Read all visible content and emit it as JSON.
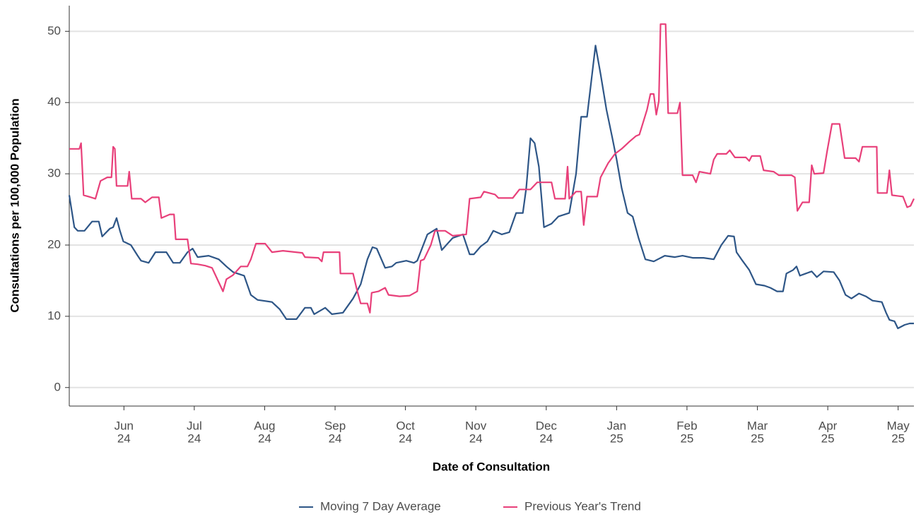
{
  "chart_data": {
    "type": "line",
    "x_label": "Date of Consultation",
    "y_label": "Consultations per 100,000 Population",
    "xlim": [
      2024.352,
      2025.352
    ],
    "ylim": [
      -2.6,
      53.6
    ],
    "xticks": [
      {
        "value": 2024.4167,
        "label": [
          "Jun",
          "24"
        ]
      },
      {
        "value": 2024.5,
        "label": [
          "Jul",
          "24"
        ]
      },
      {
        "value": 2024.5833,
        "label": [
          "Aug",
          "24"
        ]
      },
      {
        "value": 2024.6667,
        "label": [
          "Sep",
          "24"
        ]
      },
      {
        "value": 2024.75,
        "label": [
          "Oct",
          "24"
        ]
      },
      {
        "value": 2024.8333,
        "label": [
          "Nov",
          "24"
        ]
      },
      {
        "value": 2024.9167,
        "label": [
          "Dec",
          "24"
        ]
      },
      {
        "value": 2025.0,
        "label": [
          "Jan",
          "25"
        ]
      },
      {
        "value": 2025.0833,
        "label": [
          "Feb",
          "25"
        ]
      },
      {
        "value": 2025.1667,
        "label": [
          "Mar",
          "25"
        ]
      },
      {
        "value": 2025.25,
        "label": [
          "Apr",
          "25"
        ]
      },
      {
        "value": 2025.3333,
        "label": [
          "May",
          "25"
        ]
      }
    ],
    "yticks": [
      0,
      10,
      20,
      30,
      40,
      50
    ],
    "grid": true,
    "legend": "bottom",
    "series": [
      {
        "name": "Moving 7 Day Average",
        "color": "#2e5687",
        "x": [
          2024.352,
          2024.358,
          2024.362,
          2024.37,
          2024.379,
          2024.387,
          2024.391,
          2024.4,
          2024.404,
          2024.408,
          2024.412,
          2024.416,
          2024.425,
          2024.433,
          2024.437,
          2024.446,
          2024.454,
          2024.467,
          2024.475,
          2024.483,
          2024.492,
          2024.498,
          2024.504,
          2024.517,
          2024.529,
          2024.538,
          2024.546,
          2024.559,
          2024.567,
          2024.575,
          2024.592,
          2024.601,
          2024.609,
          2024.621,
          2024.631,
          2024.638,
          2024.642,
          2024.655,
          2024.663,
          2024.676,
          2024.688,
          2024.697,
          2024.705,
          2024.711,
          2024.716,
          2024.726,
          2024.734,
          2024.739,
          2024.751,
          2024.76,
          2024.764,
          2024.776,
          2024.787,
          2024.793,
          2024.806,
          2024.818,
          2024.826,
          2024.831,
          2024.839,
          2024.847,
          2024.854,
          2024.864,
          2024.873,
          2024.881,
          2024.889,
          2024.893,
          2024.898,
          2024.903,
          2024.908,
          2024.914,
          2024.923,
          2024.931,
          2024.944,
          2024.952,
          2024.958,
          2024.965,
          2024.971,
          2024.975,
          2024.981,
          2024.988,
          2024.995,
          2025.0,
          2025.006,
          2025.013,
          2025.019,
          2025.026,
          2025.034,
          2025.044,
          2025.057,
          2025.069,
          2025.078,
          2025.09,
          2025.103,
          2025.115,
          2025.124,
          2025.132,
          2025.139,
          2025.142,
          2025.149,
          2025.157,
          2025.165,
          2025.175,
          2025.182,
          2025.19,
          2025.197,
          2025.201,
          2025.209,
          2025.213,
          2025.217,
          2025.224,
          2025.231,
          2025.237,
          2025.245,
          2025.257,
          2025.264,
          2025.271,
          2025.278,
          2025.287,
          2025.295,
          2025.303,
          2025.314,
          2025.319,
          2025.323,
          2025.329,
          2025.333,
          2025.341,
          2025.347,
          2025.352
        ],
        "values": [
          27,
          22.5,
          22,
          22,
          23.3,
          23.3,
          21.2,
          22.3,
          22.5,
          23.8,
          22,
          20.5,
          20,
          18.5,
          17.8,
          17.5,
          19,
          19,
          17.5,
          17.5,
          19,
          19.5,
          18.3,
          18.5,
          18,
          17,
          16.2,
          15.7,
          13,
          12.3,
          12,
          11,
          9.6,
          9.6,
          11.2,
          11.2,
          10.3,
          11.2,
          10.3,
          10.5,
          12.5,
          14.5,
          18,
          19.7,
          19.5,
          16.8,
          17,
          17.5,
          17.8,
          17.5,
          17.8,
          21.5,
          22.3,
          19.3,
          21,
          21.5,
          18.7,
          18.7,
          19.8,
          20.5,
          22,
          21.5,
          21.8,
          24.5,
          24.5,
          28,
          35,
          34.3,
          31,
          22.5,
          23,
          24,
          24.5,
          30,
          38,
          38,
          44,
          48,
          44,
          39,
          35,
          32,
          28,
          24.5,
          24,
          21,
          18,
          17.7,
          18.5,
          18.3,
          18.5,
          18.2,
          18.2,
          18,
          20,
          21.3,
          21.2,
          19,
          17.8,
          16.5,
          14.5,
          14.3,
          14,
          13.5,
          13.5,
          16,
          16.5,
          17,
          15.7,
          16,
          16.3,
          15.5,
          16.3,
          16.2,
          15,
          13,
          12.5,
          13.2,
          12.8,
          12.2,
          12,
          10.5,
          9.5,
          9.3,
          8.3,
          8.8,
          9,
          9
        ]
      },
      {
        "name": "Previous Year's Trend",
        "color": "#e8407a",
        "x": [
          2024.352,
          2024.364,
          2024.366,
          2024.369,
          2024.375,
          2024.383,
          2024.389,
          2024.397,
          2024.402,
          2024.404,
          2024.406,
          2024.408,
          2024.421,
          2024.423,
          2024.426,
          2024.437,
          2024.442,
          2024.45,
          2024.458,
          2024.461,
          2024.471,
          2024.476,
          2024.478,
          2024.492,
          2024.496,
          2024.504,
          2024.513,
          2024.521,
          2024.525,
          2024.534,
          2024.538,
          2024.546,
          2024.555,
          2024.563,
          2024.567,
          2024.573,
          2024.584,
          2024.592,
          2024.605,
          2024.628,
          2024.631,
          2024.647,
          2024.651,
          2024.653,
          2024.672,
          2024.673,
          2024.688,
          2024.693,
          2024.697,
          2024.705,
          2024.708,
          2024.71,
          2024.718,
          2024.726,
          2024.73,
          2024.743,
          2024.755,
          2024.764,
          2024.768,
          2024.772,
          2024.78,
          2024.785,
          2024.797,
          2024.806,
          2024.822,
          2024.826,
          2024.839,
          2024.843,
          2024.856,
          2024.86,
          2024.877,
          2024.885,
          2024.898,
          2024.906,
          2024.923,
          2024.927,
          2024.939,
          2024.942,
          2024.944,
          2024.952,
          2024.958,
          2024.961,
          2024.965,
          2024.977,
          2024.981,
          2024.99,
          2024.998,
          2025.006,
          2025.015,
          2025.023,
          2025.027,
          2025.036,
          2025.04,
          2025.044,
          2025.047,
          2025.05,
          2025.052,
          2025.058,
          2025.061,
          2025.072,
          2025.075,
          2025.078,
          2025.09,
          2025.094,
          2025.098,
          2025.111,
          2025.115,
          2025.119,
          2025.13,
          2025.134,
          2025.14,
          2025.153,
          2025.157,
          2025.16,
          2025.17,
          2025.174,
          2025.186,
          2025.192,
          2025.207,
          2025.211,
          2025.214,
          2025.22,
          2025.228,
          2025.231,
          2025.234,
          2025.245,
          2025.249,
          2025.255,
          2025.264,
          2025.27,
          2025.283,
          2025.287,
          2025.291,
          2025.308,
          2025.309,
          2025.32,
          2025.323,
          2025.326,
          2025.339,
          2025.344,
          2025.348,
          2025.352
        ],
        "values": [
          33.5,
          33.5,
          34.3,
          27,
          26.8,
          26.5,
          29,
          29.5,
          29.5,
          33.8,
          33.5,
          28.3,
          28.3,
          30.3,
          26.5,
          26.5,
          26,
          26.7,
          26.7,
          23.8,
          24.3,
          24.3,
          20.8,
          20.8,
          17.4,
          17.3,
          17.1,
          16.8,
          15.8,
          13.5,
          15.2,
          15.8,
          17,
          17,
          18,
          20.2,
          20.2,
          19,
          19.2,
          18.9,
          18.3,
          18.2,
          17.7,
          19,
          19,
          16,
          16,
          13.5,
          11.8,
          11.8,
          10.5,
          13.3,
          13.5,
          14,
          13,
          12.8,
          12.9,
          13.5,
          17.8,
          18,
          20,
          22,
          22,
          21.3,
          21.5,
          26.5,
          26.7,
          27.5,
          27.1,
          26.6,
          26.6,
          27.8,
          27.8,
          28.8,
          28.8,
          26.5,
          26.5,
          31,
          26.5,
          27.5,
          27.5,
          22.8,
          26.8,
          26.8,
          29.5,
          31.5,
          32.8,
          33.5,
          34.5,
          35.3,
          35.5,
          39,
          41.2,
          41.2,
          38.3,
          40.2,
          51,
          51,
          38.5,
          38.5,
          40,
          29.8,
          29.8,
          28.8,
          30.3,
          30,
          32,
          32.8,
          32.8,
          33.3,
          32.3,
          32.3,
          31.8,
          32.5,
          32.5,
          30.5,
          30.3,
          29.8,
          29.8,
          29.5,
          24.8,
          26,
          26,
          31.2,
          30,
          30.1,
          33,
          37,
          37,
          32.2,
          32.2,
          31.7,
          33.8,
          33.8,
          27.3,
          27.3,
          30.5,
          27,
          26.8,
          25.3,
          25.5,
          26.5
        ]
      }
    ]
  }
}
